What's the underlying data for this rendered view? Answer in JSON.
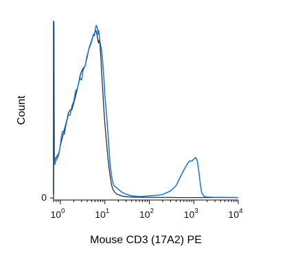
{
  "chart_data": {
    "type": "line",
    "xlabel": "Mouse CD3 (17A2) PE",
    "ylabel": "Count",
    "x_scale": "log",
    "xlim": [
      0.7,
      10000
    ],
    "ylim": [
      0,
      1
    ],
    "y_tick_label": "0",
    "x_ticks": [
      {
        "value": 1,
        "base": "10",
        "exp": "0"
      },
      {
        "value": 10,
        "base": "10",
        "exp": "1"
      },
      {
        "value": 100,
        "base": "10",
        "exp": "2"
      },
      {
        "value": 1000,
        "base": "10",
        "exp": "3"
      },
      {
        "value": 10000,
        "base": "10",
        "exp": "4"
      }
    ],
    "grid": false,
    "series": [
      {
        "color": "#2a2a2a",
        "x": [
          0.72,
          0.76,
          0.8,
          0.85,
          0.9,
          0.95,
          1.0,
          1.1,
          1.2,
          1.35,
          1.5,
          1.65,
          1.8,
          2.0,
          2.2,
          2.4,
          2.6,
          2.8,
          3.0,
          3.3,
          3.6,
          3.9,
          4.2,
          4.5,
          4.8,
          5.1,
          5.4,
          5.7,
          6.0,
          6.3,
          6.6,
          6.9,
          7.2,
          7.5,
          7.8,
          8.1,
          8.5,
          9.0,
          9.5,
          10,
          11,
          12,
          13,
          14,
          15,
          17,
          19,
          22,
          25,
          30,
          40,
          60,
          100,
          200,
          500,
          1000,
          2000,
          5000,
          10000
        ],
        "y": [
          0.22,
          0.22,
          0.23,
          0.24,
          0.25,
          0.27,
          0.3,
          0.34,
          0.38,
          0.43,
          0.48,
          0.5,
          0.5,
          0.54,
          0.58,
          0.62,
          0.66,
          0.7,
          0.72,
          0.74,
          0.75,
          0.8,
          0.83,
          0.86,
          0.88,
          0.9,
          0.92,
          0.93,
          0.94,
          0.95,
          0.93,
          0.9,
          0.88,
          0.9,
          0.86,
          0.8,
          0.7,
          0.6,
          0.5,
          0.42,
          0.3,
          0.2,
          0.13,
          0.08,
          0.05,
          0.03,
          0.02,
          0.015,
          0.01,
          0.008,
          0.005,
          0.004,
          0.003,
          0.003,
          0.002,
          0.002,
          0.002,
          0.002,
          0.002
        ]
      },
      {
        "color": "#1f77d4",
        "x": [
          0.7,
          0.705,
          0.71,
          0.715,
          0.72,
          0.73,
          0.75,
          0.78,
          0.82,
          0.87,
          0.92,
          0.97,
          1.03,
          1.08,
          1.15,
          1.22,
          1.3,
          1.4,
          1.5,
          1.65,
          1.8,
          2.0,
          2.2,
          2.4,
          2.6,
          2.8,
          3.0,
          3.2,
          3.4,
          3.6,
          3.8,
          4.0,
          4.3,
          4.6,
          4.9,
          5.2,
          5.5,
          5.8,
          6.1,
          6.4,
          6.7,
          7.0,
          7.3,
          7.6,
          8.0,
          8.5,
          9.0,
          9.5,
          10,
          11,
          12,
          13,
          14,
          15,
          16,
          18,
          20,
          22,
          25,
          28,
          32,
          36,
          40,
          50,
          60,
          80,
          100,
          150,
          200,
          300,
          400,
          500,
          600,
          700,
          800,
          900,
          1000,
          1100,
          1200,
          1300,
          1400,
          1500,
          1700,
          2000,
          3000,
          5000,
          10000
        ],
        "y": [
          0.02,
          1.0,
          0.99,
          0.95,
          0.6,
          0.25,
          0.19,
          0.21,
          0.22,
          0.23,
          0.25,
          0.28,
          0.33,
          0.37,
          0.38,
          0.36,
          0.4,
          0.44,
          0.47,
          0.47,
          0.52,
          0.55,
          0.61,
          0.62,
          0.66,
          0.68,
          0.67,
          0.72,
          0.74,
          0.75,
          0.78,
          0.8,
          0.84,
          0.86,
          0.88,
          0.9,
          0.93,
          0.92,
          0.96,
          0.98,
          0.97,
          0.93,
          0.95,
          0.9,
          0.87,
          0.83,
          0.76,
          0.68,
          0.58,
          0.46,
          0.33,
          0.2,
          0.13,
          0.09,
          0.07,
          0.06,
          0.05,
          0.04,
          0.03,
          0.025,
          0.02,
          0.015,
          0.012,
          0.01,
          0.008,
          0.01,
          0.012,
          0.015,
          0.02,
          0.04,
          0.07,
          0.12,
          0.16,
          0.19,
          0.21,
          0.21,
          0.22,
          0.23,
          0.21,
          0.15,
          0.08,
          0.03,
          0.01,
          0.005,
          0.003,
          0.003,
          0.002
        ]
      }
    ]
  }
}
